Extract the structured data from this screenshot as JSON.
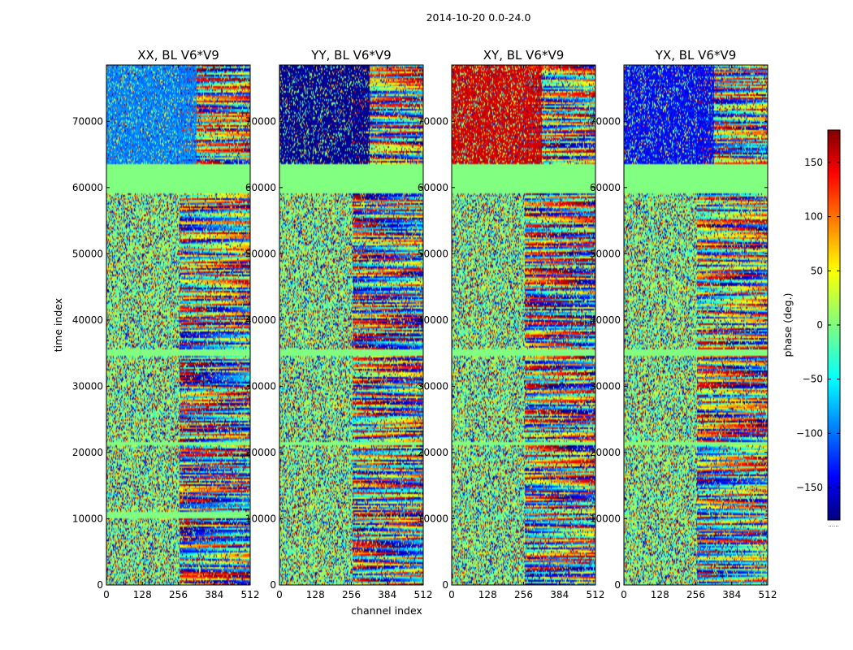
{
  "chart_data": {
    "type": "heatmap",
    "suptitle": "2014-10-20 0.0-24.0",
    "xlabel": "channel index",
    "ylabel": "time index",
    "xlim": [
      0,
      512
    ],
    "ylim": [
      0,
      78500
    ],
    "xticks": [
      0,
      128,
      256,
      384,
      512
    ],
    "yticks": [
      0,
      10000,
      20000,
      30000,
      40000,
      50000,
      60000,
      70000
    ],
    "panels": [
      {
        "name": "xx",
        "title": "XX, BL V6*V9",
        "flag_phase": -90
      },
      {
        "name": "yy",
        "title": "YY, BL V6*V9",
        "flag_phase": -175
      },
      {
        "name": "xy",
        "title": "XY, BL V6*V9",
        "flag_phase": 150
      },
      {
        "name": "yx",
        "title": "YX, BL V6*V9",
        "flag_phase": -135
      }
    ],
    "flat_bands": [
      {
        "start": 59000,
        "end": 63500,
        "phase": 0,
        "panels": "all"
      },
      {
        "start": 34600,
        "end": 35600,
        "phase": 0,
        "panels": "all"
      },
      {
        "start": 21000,
        "end": 21500,
        "phase": 0,
        "panels": "all"
      },
      {
        "start": 10000,
        "end": 11000,
        "phase": 0,
        "panels": "xx"
      }
    ],
    "colorbar": {
      "label": "phase (deg.)",
      "vmin": -180,
      "vmax": 180,
      "ticks": [
        -150,
        -100,
        -50,
        0,
        50,
        100,
        150
      ],
      "colormap": "jet",
      "colormap_stops": [
        "#00007f",
        "#0000ff",
        "#00ffff",
        "#7fff7f",
        "#ffff00",
        "#ff0000",
        "#7f0000"
      ],
      "footnote": "......"
    }
  }
}
